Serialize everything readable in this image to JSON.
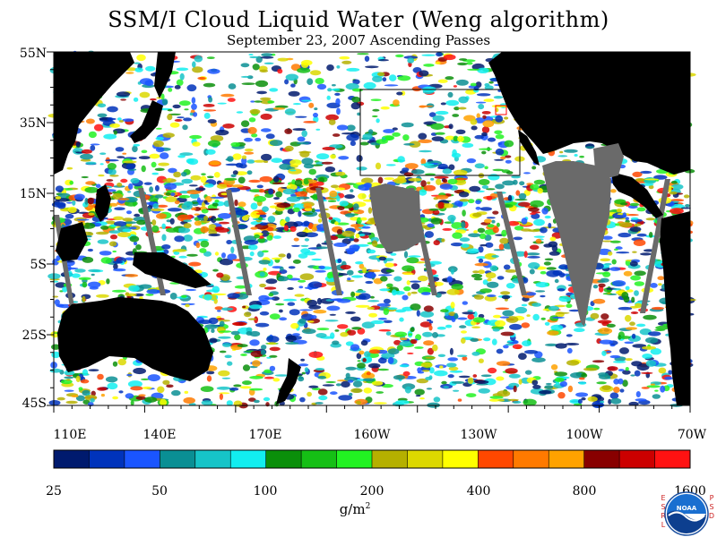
{
  "title": "SSM/I Cloud Liquid Water (Weng algorithm)",
  "subtitle": "September 23, 2007  Ascending Passes",
  "lat_labels": [
    "55N",
    "35N",
    "15N",
    "5S",
    "25S",
    "45S"
  ],
  "lon_labels": [
    "110E",
    "140E",
    "170E",
    "160W",
    "130W",
    "100W",
    "70W"
  ],
  "colorbar": {
    "tick_labels": [
      "25",
      "50",
      "100",
      "200",
      "400",
      "800",
      "1600"
    ],
    "unit_text": "g/m",
    "unit_superscript": "2",
    "colors": [
      "#001a6e",
      "#0033bb",
      "#1a55ff",
      "#0a8f94",
      "#16c4c8",
      "#12eef0",
      "#0a8f0a",
      "#15bf15",
      "#22f222",
      "#b5b000",
      "#dcd800",
      "#ffff00",
      "#ff4800",
      "#ff7a00",
      "#ffa200",
      "#880000",
      "#cc0000",
      "#ff1212"
    ]
  },
  "colors": {
    "land": "#000000",
    "missing_data": "#696969",
    "ocean_clear": "#ffffff"
  },
  "logo": {
    "left_letters": "ESRL",
    "right_letters": "PSD",
    "emblem_text": "NOAA"
  }
}
